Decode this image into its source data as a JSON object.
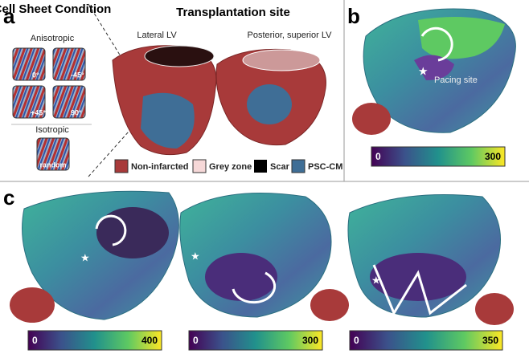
{
  "panel_a": {
    "label": "a",
    "cell_sheet": {
      "title": "Cell Sheet Condition",
      "anisotropic": "Anisotropic",
      "angles": [
        "0°",
        "-45°",
        "+45°",
        "90°"
      ],
      "isotropic": "Isotropic",
      "random": "random"
    },
    "transplantation": {
      "title": "Transplantation site",
      "sites": [
        "Lateral LV",
        "Posterior, superior LV"
      ]
    },
    "legend": [
      "Non-infarcted",
      "Grey zone",
      "Scar",
      "PSC-CM"
    ]
  },
  "panel_b": {
    "label": "b",
    "annotation": "Pacing site",
    "colorbar": {
      "min": 0,
      "max": 300
    }
  },
  "panel_c": {
    "label": "c",
    "colorbars": [
      {
        "min": 0,
        "max": 400
      },
      {
        "min": 0,
        "max": 300
      },
      {
        "min": 0,
        "max": 350
      }
    ]
  }
}
